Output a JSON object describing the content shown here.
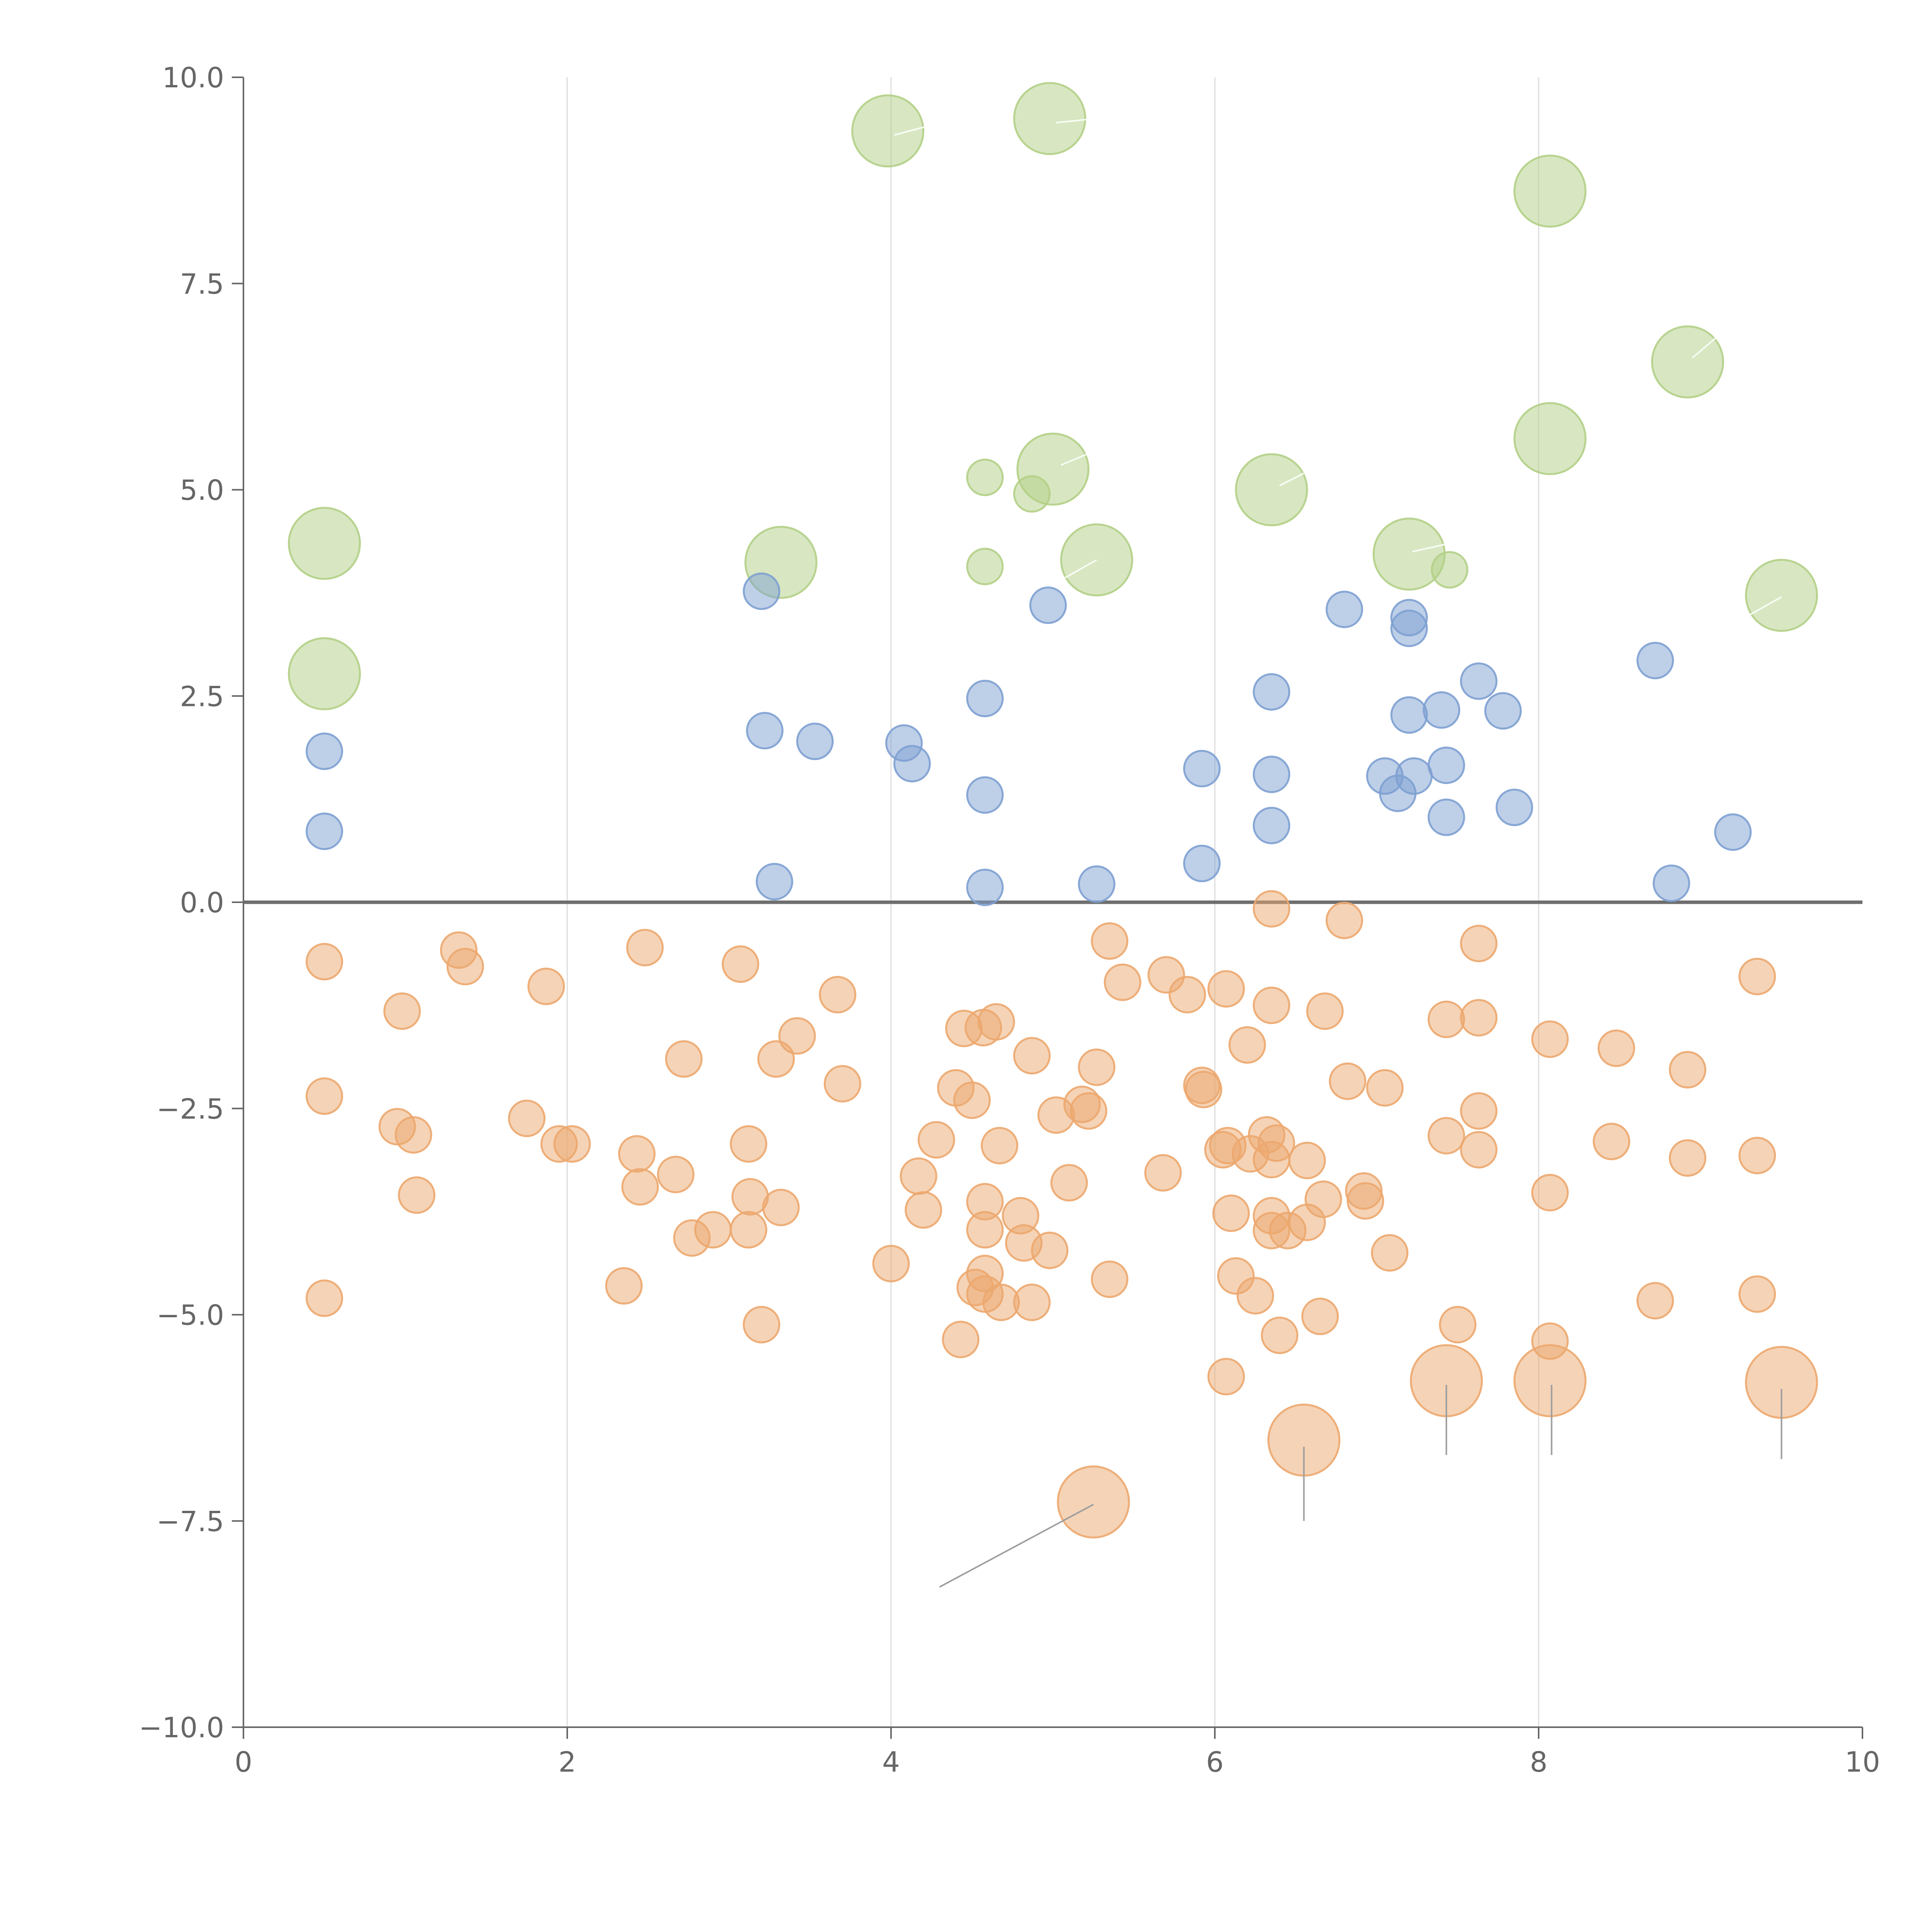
{
  "colors": {
    "blue": "#7da0d2",
    "green": "#b2cf86",
    "orange": "#eca76e",
    "axis": "#666666",
    "grid": "#dcdcdc",
    "zero_line": "#6e6e6e"
  },
  "chart_data": {
    "type": "scatter",
    "title": "",
    "xlabel": "",
    "ylabel": "",
    "xlim": [
      0,
      10
    ],
    "ylim": [
      -10,
      10
    ],
    "x_ticks": [
      0,
      2,
      4,
      6,
      8,
      10
    ],
    "y_ticks": [
      10,
      7.5,
      5,
      2.5,
      0,
      -2.5,
      -5,
      -7.5,
      -10
    ],
    "x_tick_labels": [
      "0",
      "2",
      "4",
      "6",
      "8",
      "10"
    ],
    "y_tick_labels": [
      "10.0",
      "7.5",
      "5.0",
      "2.5",
      "0.0",
      "−2.5",
      "−5.0",
      "−7.5",
      "−10.0"
    ],
    "vertical_gridlines_at": [
      2,
      4,
      6,
      8
    ],
    "reference_line_y": 0,
    "annotations": [
      {
        "from": [
          5.25,
          -7.3
        ],
        "to": [
          4.3,
          -8.3
        ]
      },
      {
        "from": [
          6.55,
          -6.6
        ],
        "to": [
          6.55,
          -7.5
        ]
      },
      {
        "from": [
          7.43,
          -5.85
        ],
        "to": [
          7.43,
          -6.7
        ]
      },
      {
        "from": [
          8.08,
          -5.85
        ],
        "to": [
          8.08,
          -6.7
        ]
      },
      {
        "from": [
          9.5,
          -5.9
        ],
        "to": [
          9.5,
          -6.75
        ]
      }
    ],
    "series": [
      {
        "name": "green",
        "color": "#b2cf86",
        "points": [
          [
            3.98,
            9.35,
            2
          ],
          [
            4.98,
            9.5,
            2
          ],
          [
            8.07,
            8.62,
            2
          ],
          [
            8.92,
            6.55,
            2
          ],
          [
            8.07,
            5.62,
            2
          ],
          [
            5.0,
            5.25,
            2
          ],
          [
            6.35,
            5.0,
            2
          ],
          [
            0.5,
            4.35,
            2
          ],
          [
            3.32,
            4.12,
            2
          ],
          [
            5.27,
            4.15,
            2
          ],
          [
            7.2,
            4.22,
            2
          ],
          [
            9.5,
            3.72,
            2
          ],
          [
            0.5,
            2.77,
            2
          ],
          [
            4.58,
            5.15,
            1
          ],
          [
            4.87,
            4.95,
            1
          ],
          [
            4.58,
            4.07,
            1
          ],
          [
            7.45,
            4.03,
            1
          ]
        ]
      },
      {
        "name": "blue",
        "color": "#7da0d2",
        "points": [
          [
            3.2,
            3.77,
            1
          ],
          [
            4.97,
            3.6,
            1
          ],
          [
            6.8,
            3.55,
            1
          ],
          [
            7.2,
            3.45,
            1
          ],
          [
            7.2,
            3.32,
            1
          ],
          [
            8.72,
            2.93,
            1
          ],
          [
            7.63,
            2.68,
            1
          ],
          [
            6.35,
            2.55,
            1
          ],
          [
            4.58,
            2.47,
            1
          ],
          [
            7.4,
            2.33,
            1
          ],
          [
            7.78,
            2.32,
            1
          ],
          [
            7.2,
            2.27,
            1
          ],
          [
            3.22,
            2.08,
            1
          ],
          [
            3.53,
            1.95,
            1
          ],
          [
            4.08,
            1.93,
            1
          ],
          [
            0.5,
            1.83,
            1
          ],
          [
            4.13,
            1.68,
            1
          ],
          [
            7.43,
            1.66,
            1
          ],
          [
            5.92,
            1.62,
            1
          ],
          [
            6.35,
            1.55,
            1
          ],
          [
            7.05,
            1.53,
            1
          ],
          [
            7.23,
            1.53,
            1
          ],
          [
            7.85,
            1.15,
            1
          ],
          [
            4.58,
            1.3,
            1
          ],
          [
            7.13,
            1.32,
            1
          ],
          [
            7.43,
            1.03,
            1
          ],
          [
            6.35,
            0.93,
            1
          ],
          [
            0.5,
            0.86,
            1
          ],
          [
            9.2,
            0.85,
            1
          ],
          [
            5.92,
            0.47,
            1
          ],
          [
            3.28,
            0.25,
            1
          ],
          [
            8.82,
            0.23,
            1
          ],
          [
            5.27,
            0.22,
            1
          ],
          [
            4.58,
            0.18,
            1
          ]
        ]
      },
      {
        "name": "orange",
        "color": "#eca76e",
        "points": [
          [
            6.35,
            -0.08,
            1
          ],
          [
            6.8,
            -0.22,
            1
          ],
          [
            5.35,
            -0.47,
            1
          ],
          [
            7.63,
            -0.5,
            1
          ],
          [
            2.48,
            -0.55,
            1
          ],
          [
            1.33,
            -0.58,
            1
          ],
          [
            0.5,
            -0.72,
            1
          ],
          [
            1.37,
            -0.78,
            1
          ],
          [
            3.07,
            -0.75,
            1
          ],
          [
            5.7,
            -0.88,
            1
          ],
          [
            9.35,
            -0.9,
            1
          ],
          [
            5.43,
            -0.97,
            1
          ],
          [
            1.87,
            -1.02,
            1
          ],
          [
            6.07,
            -1.05,
            1
          ],
          [
            5.83,
            -1.12,
            1
          ],
          [
            3.67,
            -1.12,
            1
          ],
          [
            6.35,
            -1.25,
            1
          ],
          [
            0.98,
            -1.32,
            1
          ],
          [
            6.68,
            -1.32,
            1
          ],
          [
            7.43,
            -1.42,
            1
          ],
          [
            7.63,
            -1.4,
            1
          ],
          [
            4.65,
            -1.45,
            1
          ],
          [
            4.45,
            -1.53,
            1
          ],
          [
            4.57,
            -1.52,
            1
          ],
          [
            3.42,
            -1.62,
            1
          ],
          [
            8.07,
            -1.66,
            1
          ],
          [
            6.2,
            -1.73,
            1
          ],
          [
            8.48,
            -1.77,
            1
          ],
          [
            4.87,
            -1.86,
            1
          ],
          [
            2.72,
            -1.9,
            1
          ],
          [
            3.29,
            -1.9,
            1
          ],
          [
            5.27,
            -2.0,
            1
          ],
          [
            8.92,
            -2.03,
            1
          ],
          [
            6.82,
            -2.17,
            1
          ],
          [
            3.7,
            -2.2,
            1
          ],
          [
            5.92,
            -2.22,
            1
          ],
          [
            7.05,
            -2.25,
            1
          ],
          [
            4.4,
            -2.25,
            1
          ],
          [
            5.93,
            -2.27,
            1
          ],
          [
            0.5,
            -2.35,
            1
          ],
          [
            4.5,
            -2.4,
            1
          ],
          [
            5.18,
            -2.45,
            1
          ],
          [
            5.22,
            -2.53,
            1
          ],
          [
            7.63,
            -2.53,
            1
          ],
          [
            5.02,
            -2.58,
            1
          ],
          [
            1.75,
            -2.62,
            1
          ],
          [
            0.95,
            -2.72,
            1
          ],
          [
            1.05,
            -2.82,
            1
          ],
          [
            7.43,
            -2.83,
            1
          ],
          [
            6.32,
            -2.82,
            1
          ],
          [
            4.28,
            -2.88,
            1
          ],
          [
            8.45,
            -2.9,
            1
          ],
          [
            6.38,
            -2.92,
            1
          ],
          [
            1.95,
            -2.93,
            1
          ],
          [
            2.03,
            -2.93,
            1
          ],
          [
            3.12,
            -2.93,
            1
          ],
          [
            4.67,
            -2.95,
            1
          ],
          [
            6.08,
            -2.95,
            1
          ],
          [
            6.05,
            -3.0,
            1
          ],
          [
            7.63,
            -3.0,
            1
          ],
          [
            6.22,
            -3.05,
            1
          ],
          [
            2.43,
            -3.05,
            1
          ],
          [
            8.92,
            -3.1,
            1
          ],
          [
            9.35,
            -3.07,
            1
          ],
          [
            6.35,
            -3.12,
            1
          ],
          [
            6.57,
            -3.13,
            1
          ],
          [
            5.68,
            -3.28,
            1
          ],
          [
            2.67,
            -3.3,
            1
          ],
          [
            4.17,
            -3.32,
            1
          ],
          [
            5.1,
            -3.4,
            1
          ],
          [
            2.45,
            -3.45,
            1
          ],
          [
            8.07,
            -3.52,
            1
          ],
          [
            1.07,
            -3.55,
            1
          ],
          [
            3.13,
            -3.57,
            1
          ],
          [
            6.92,
            -3.5,
            1
          ],
          [
            6.67,
            -3.6,
            1
          ],
          [
            4.58,
            -3.63,
            1
          ],
          [
            6.93,
            -3.62,
            1
          ],
          [
            3.32,
            -3.7,
            1
          ],
          [
            4.2,
            -3.73,
            1
          ],
          [
            6.1,
            -3.77,
            1
          ],
          [
            4.8,
            -3.8,
            1
          ],
          [
            6.35,
            -3.8,
            1
          ],
          [
            6.57,
            -3.88,
            1
          ],
          [
            2.9,
            -3.97,
            1
          ],
          [
            6.35,
            -3.98,
            1
          ],
          [
            3.12,
            -3.97,
            1
          ],
          [
            4.58,
            -3.97,
            1
          ],
          [
            6.45,
            -3.98,
            1
          ],
          [
            2.77,
            -4.07,
            1
          ],
          [
            4.82,
            -4.13,
            1
          ],
          [
            4.98,
            -4.22,
            1
          ],
          [
            7.08,
            -4.25,
            1
          ],
          [
            4.0,
            -4.38,
            1
          ],
          [
            6.13,
            -4.53,
            1
          ],
          [
            4.58,
            -4.5,
            1
          ],
          [
            5.35,
            -4.57,
            1
          ],
          [
            2.35,
            -4.65,
            1
          ],
          [
            4.52,
            -4.67,
            1
          ],
          [
            4.58,
            -4.75,
            1
          ],
          [
            9.35,
            -4.75,
            1
          ],
          [
            6.25,
            -4.77,
            1
          ],
          [
            4.87,
            -4.85,
            1
          ],
          [
            4.68,
            -4.85,
            1
          ],
          [
            0.5,
            -4.8,
            1
          ],
          [
            8.72,
            -4.83,
            1
          ],
          [
            6.65,
            -5.02,
            1
          ],
          [
            3.2,
            -5.12,
            1
          ],
          [
            7.5,
            -5.12,
            1
          ],
          [
            6.4,
            -5.25,
            1
          ],
          [
            4.43,
            -5.3,
            1
          ],
          [
            8.07,
            -5.32,
            1
          ],
          [
            6.07,
            -5.75,
            1
          ],
          [
            7.43,
            -5.8,
            2
          ],
          [
            8.07,
            -5.8,
            2
          ],
          [
            9.5,
            -5.82,
            2
          ],
          [
            6.55,
            -6.52,
            2
          ],
          [
            5.25,
            -7.27,
            2
          ]
        ]
      }
    ]
  }
}
